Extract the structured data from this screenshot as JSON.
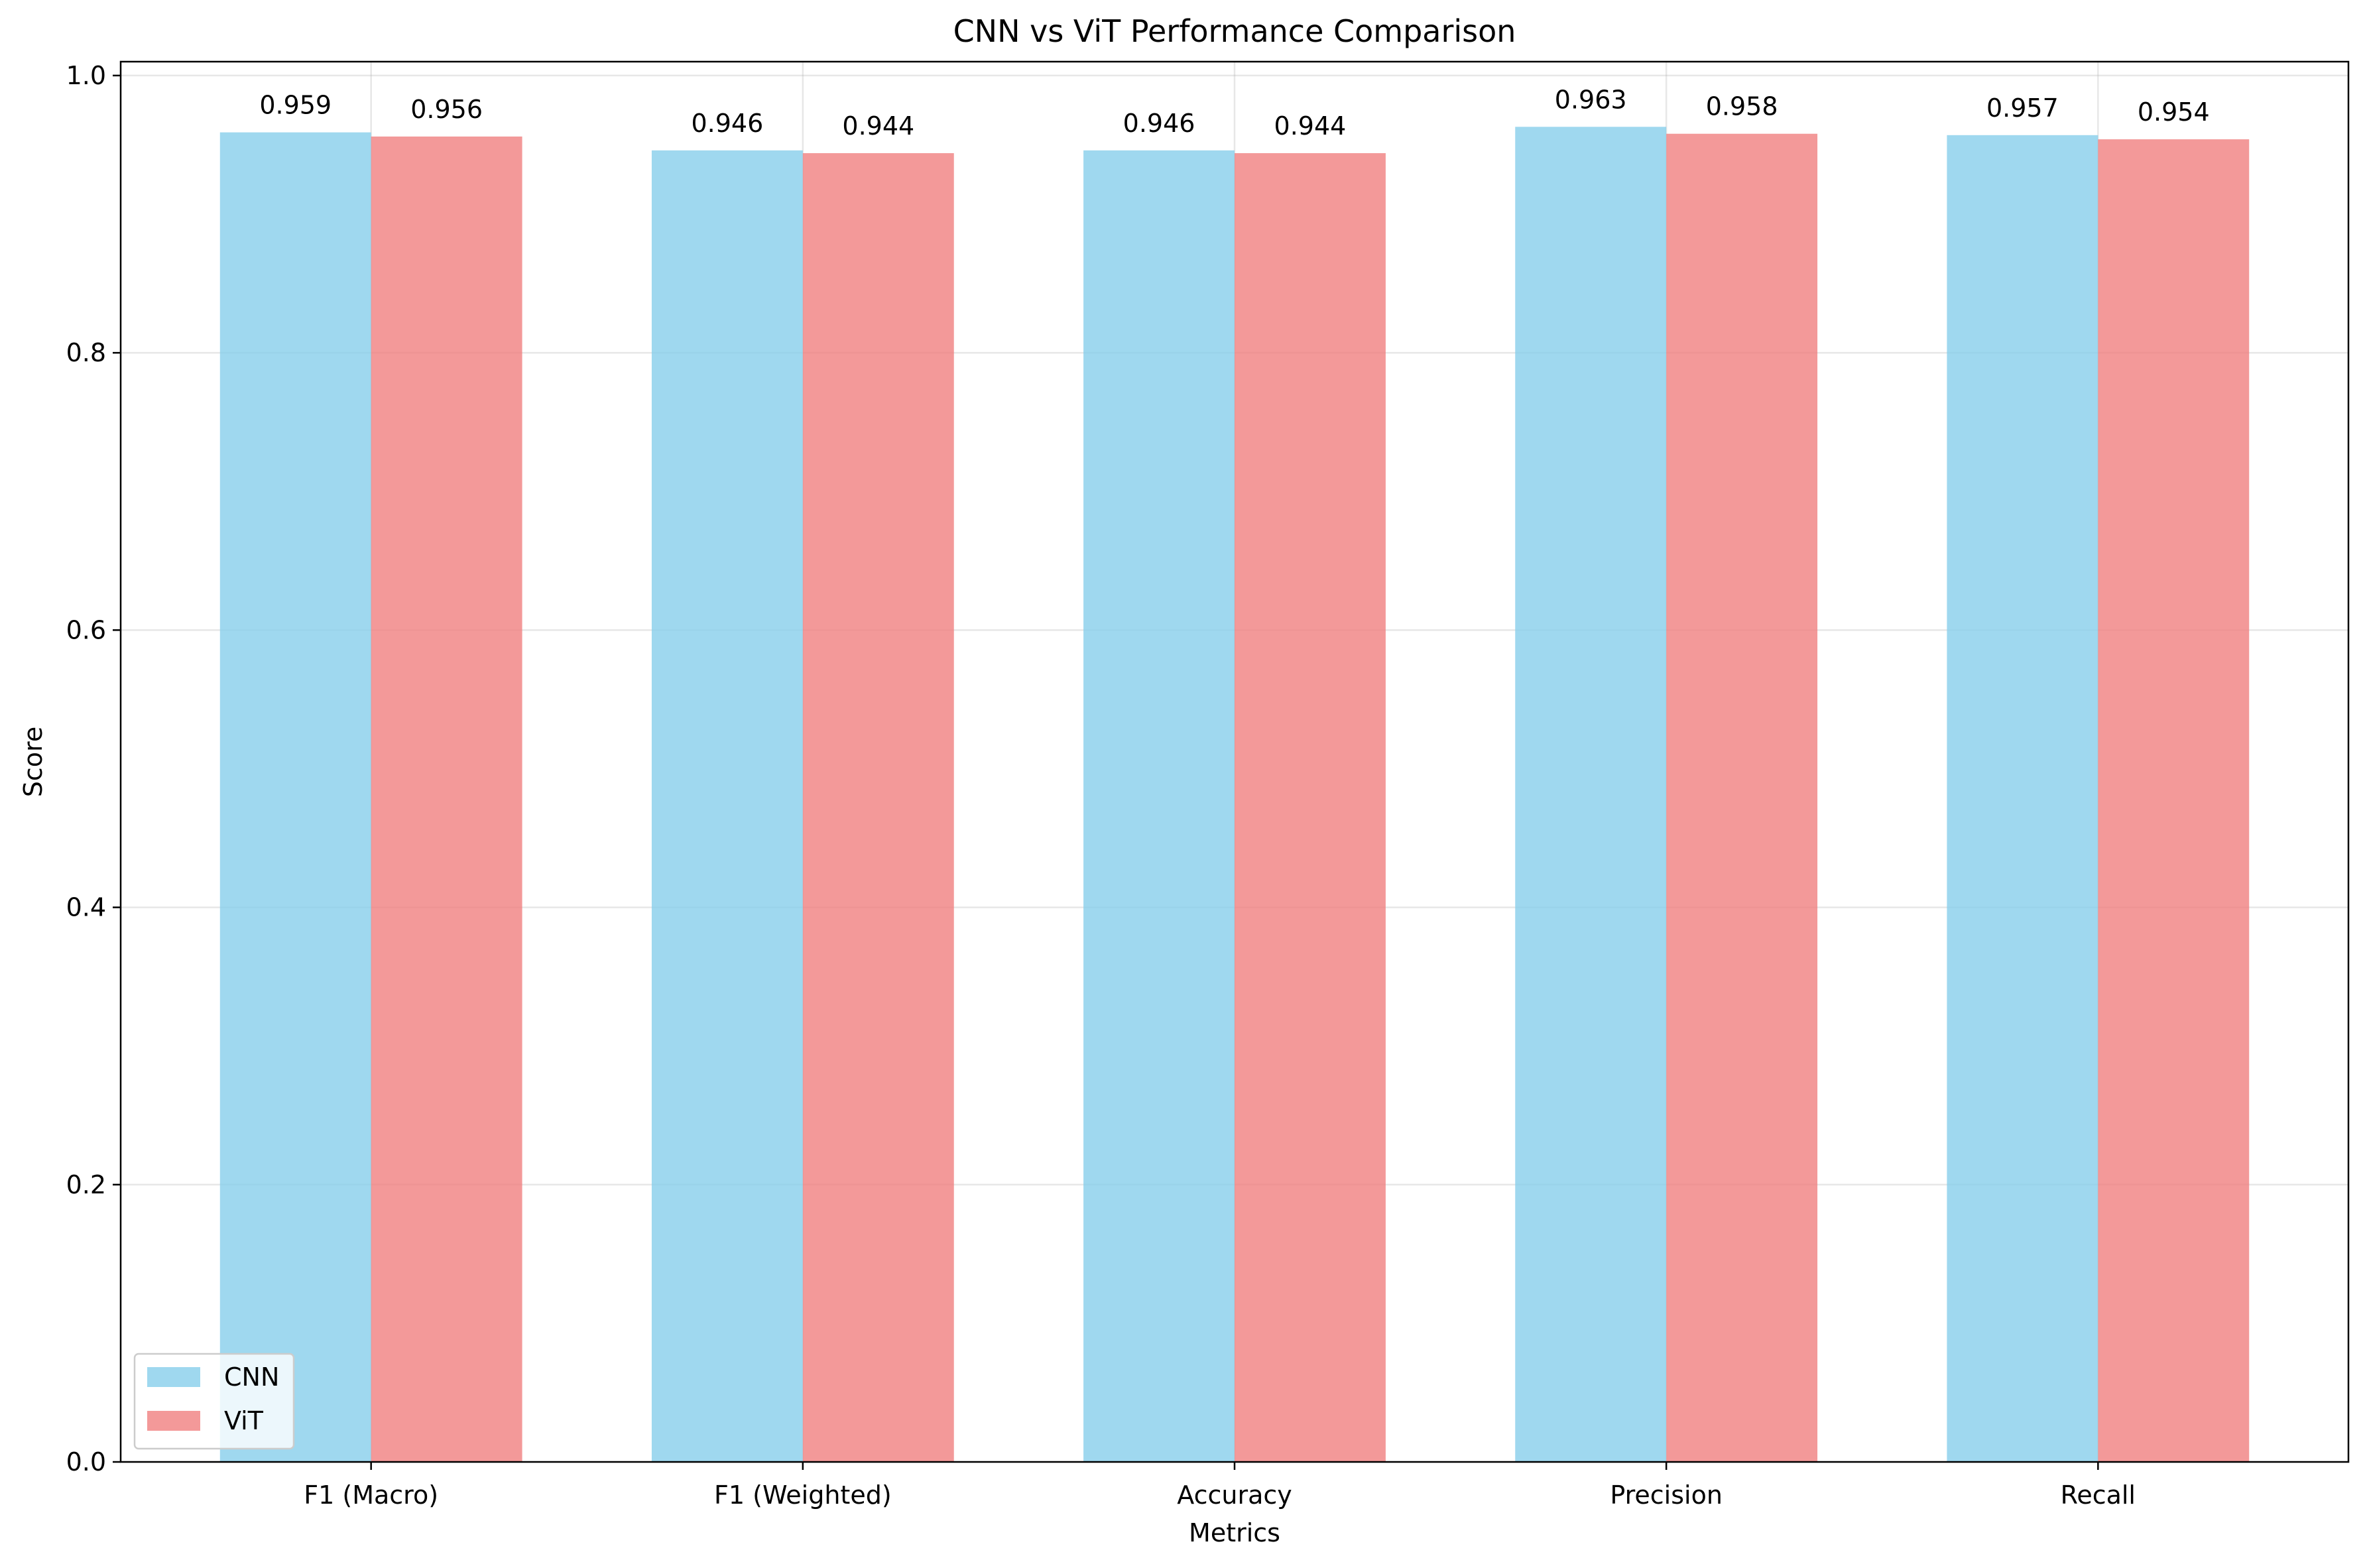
{
  "chart_data": {
    "type": "bar",
    "title": "CNN vs ViT Performance Comparison",
    "xlabel": "Metrics",
    "ylabel": "Score",
    "categories": [
      "F1 (Macro)",
      "F1 (Weighted)",
      "Accuracy",
      "Precision",
      "Recall"
    ],
    "series": [
      {
        "name": "CNN",
        "values": [
          0.959,
          0.946,
          0.946,
          0.963,
          0.957
        ],
        "color": "#87CEEB"
      },
      {
        "name": "ViT",
        "values": [
          0.956,
          0.944,
          0.944,
          0.958,
          0.954
        ],
        "color": "#F08080"
      }
    ],
    "value_labels": {
      "CNN": [
        "0.959",
        "0.946",
        "0.946",
        "0.963",
        "0.957"
      ],
      "ViT": [
        "0.956",
        "0.944",
        "0.944",
        "0.958",
        "0.954"
      ]
    },
    "ylim": [
      0,
      1.01
    ],
    "yticks": [
      0.0,
      0.2,
      0.4,
      0.6,
      0.8,
      1.0
    ],
    "ytick_labels": [
      "0.0",
      "0.2",
      "0.4",
      "0.6",
      "0.8",
      "1.0"
    ],
    "grid": true,
    "legend_position": "lower-left"
  }
}
